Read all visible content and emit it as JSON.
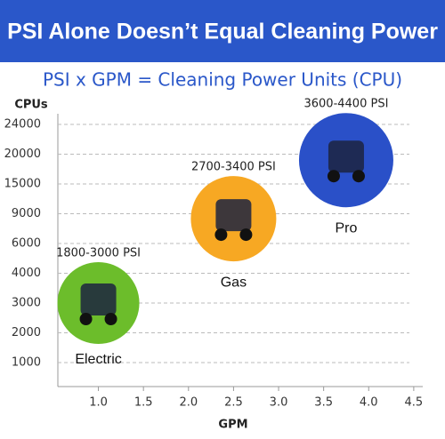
{
  "chart_data": {
    "type": "bubble",
    "title": "PSI Alone Doesn’t Equal Cleaning Power",
    "subtitle": "PSI x GPM = Cleaning Power Units (CPU)",
    "y_label": "CPUs",
    "x_label": "GPM",
    "xlim": [
      0.55,
      4.6
    ],
    "xticks": [
      {
        "value": 1,
        "label": "1.0"
      },
      1.5,
      {
        "value": 2,
        "label": "2.0"
      },
      2.5,
      {
        "value": 3,
        "label": "3.0"
      },
      3.5,
      {
        "value": 4,
        "label": "4.0"
      },
      4.5
    ],
    "yticks": [
      1000,
      2000,
      3000,
      4000,
      6000,
      9000,
      15000,
      20000,
      24000
    ],
    "grid": true,
    "series": [
      {
        "name": "Electric",
        "psi": "1800-3000 PSI",
        "color": "#6cbd2b",
        "x": 1.0,
        "y": 3000
      },
      {
        "name": "Gas",
        "psi": "2700-3400 PSI",
        "color": "#f7a823",
        "x": 2.5,
        "y": 8500
      },
      {
        "name": "Pro",
        "psi": "3600-4400 PSI",
        "color": "#2a50c8",
        "x": 3.75,
        "y": 19000
      }
    ]
  }
}
